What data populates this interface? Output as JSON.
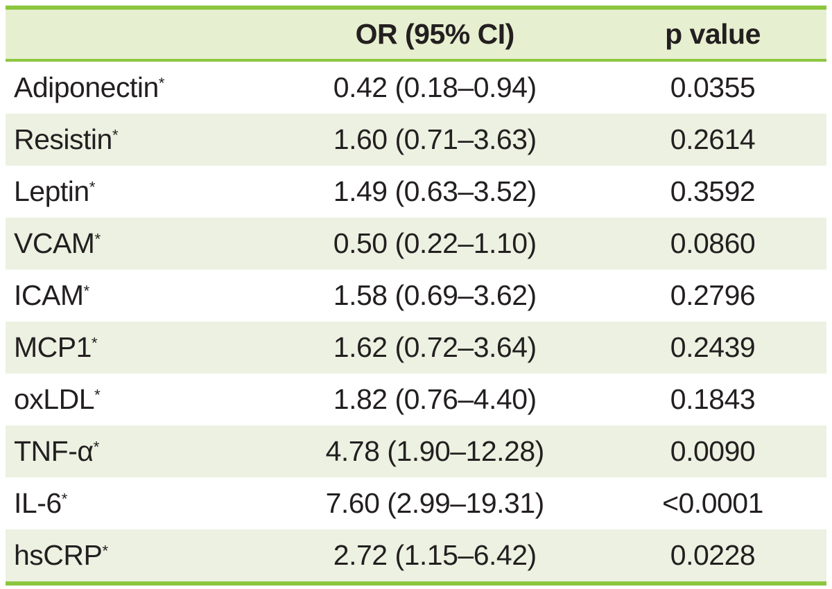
{
  "colors": {
    "border_green": "#8cc63e",
    "header_fill": "#e6efcf",
    "stripe_fill": "#ecf1e1",
    "text": "#231f20"
  },
  "table": {
    "columns": [
      {
        "label": ""
      },
      {
        "label": "OR (95% CI)"
      },
      {
        "label": "p value"
      }
    ],
    "rows": [
      {
        "label": "Adiponectin",
        "marker": "*",
        "or_ci": "0.42 (0.18–0.94)",
        "p": "0.0355"
      },
      {
        "label": "Resistin",
        "marker": "*",
        "or_ci": "1.60 (0.71–3.63)",
        "p": "0.2614"
      },
      {
        "label": "Leptin",
        "marker": "*",
        "or_ci": "1.49 (0.63–3.52)",
        "p": "0.3592"
      },
      {
        "label": "VCAM",
        "marker": "*",
        "or_ci": "0.50 (0.22–1.10)",
        "p": "0.0860"
      },
      {
        "label": "ICAM",
        "marker": "*",
        "or_ci": "1.58 (0.69–3.62)",
        "p": "0.2796"
      },
      {
        "label": "MCP1",
        "marker": "*",
        "or_ci": "1.62 (0.72–3.64)",
        "p": "0.2439"
      },
      {
        "label": "oxLDL",
        "marker": "*",
        "or_ci": "1.82 (0.76–4.40)",
        "p": "0.1843"
      },
      {
        "label": "TNF-α",
        "marker": "*",
        "or_ci": "4.78 (1.90–12.28)",
        "p": "0.0090"
      },
      {
        "label": "IL-6",
        "marker": "*",
        "or_ci": "7.60 (2.99–19.31)",
        "p": "<0.0001"
      },
      {
        "label": "hsCRP",
        "marker": "*",
        "or_ci": "2.72 (1.15–6.42)",
        "p": "0.0228"
      }
    ]
  },
  "chart_data": {
    "type": "table",
    "columns": [
      "",
      "OR (95% CI)",
      "p value"
    ],
    "rows": [
      [
        "Adiponectin*",
        "0.42 (0.18–0.94)",
        "0.0355"
      ],
      [
        "Resistin*",
        "1.60 (0.71–3.63)",
        "0.2614"
      ],
      [
        "Leptin*",
        "1.49 (0.63–3.52)",
        "0.3592"
      ],
      [
        "VCAM*",
        "0.50 (0.22–1.10)",
        "0.0860"
      ],
      [
        "ICAM*",
        "1.58 (0.69–3.62)",
        "0.2796"
      ],
      [
        "MCP1*",
        "1.62 (0.72–3.64)",
        "0.2439"
      ],
      [
        "oxLDL*",
        "1.82 (0.76–4.40)",
        "0.1843"
      ],
      [
        "TNF-α*",
        "4.78 (1.90–12.28)",
        "0.0090"
      ],
      [
        "IL-6*",
        "7.60 (2.99–19.31)",
        "<0.0001"
      ],
      [
        "hsCRP*",
        "2.72 (1.15–6.42)",
        "0.0228"
      ]
    ]
  }
}
